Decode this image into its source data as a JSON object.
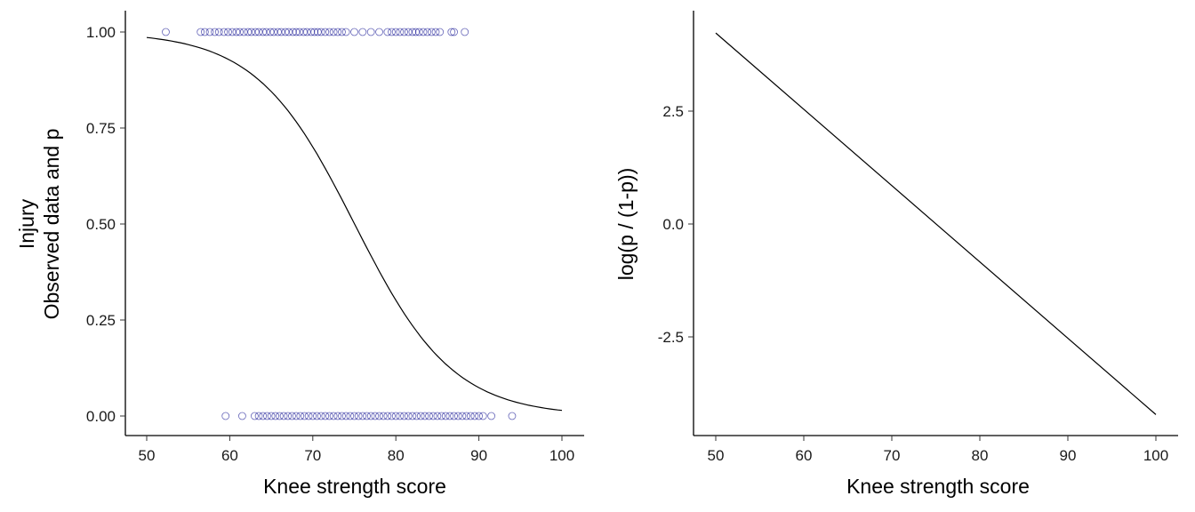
{
  "chart_data": [
    {
      "type": "scatter+line",
      "xlabel": "Knee strength score",
      "ylabel": [
        "Injury",
        "Observed data and p"
      ],
      "xlim": [
        47.5,
        102.5
      ],
      "ylim": [
        -0.05,
        1.05
      ],
      "xticks": [
        50,
        60,
        70,
        80,
        90,
        100
      ],
      "yticks": [
        "0.00",
        "0.25",
        "0.50",
        "0.75",
        "1.00"
      ],
      "point_color": "#00008b",
      "points_y1": [
        52.3,
        56.5,
        57,
        57.6,
        58.2,
        58.7,
        59.3,
        59.8,
        60.3,
        60.8,
        61.2,
        61.7,
        62.2,
        62.6,
        63.1,
        63.5,
        64,
        64.4,
        64.9,
        65.3,
        65.8,
        66.2,
        66.7,
        67.1,
        67.6,
        68,
        68.4,
        68.9,
        69.3,
        69.8,
        70.2,
        70.6,
        71,
        71.5,
        72,
        72.5,
        73,
        73.5,
        74,
        75,
        76,
        77,
        78,
        79,
        79.5,
        80,
        80.5,
        81,
        81.5,
        82,
        82.4,
        82.8,
        83.3,
        83.8,
        84.3,
        84.8,
        85.3,
        86.7,
        87,
        88.3
      ],
      "points_y0": [
        59.5,
        61.5,
        63,
        63.5,
        64,
        64.5,
        65,
        65.5,
        66,
        66.5,
        67,
        67.5,
        68,
        68.5,
        69,
        69.5,
        70,
        70.5,
        71,
        71.5,
        72,
        72.5,
        73,
        73.5,
        74,
        74.5,
        75,
        75.5,
        76,
        76.5,
        77,
        77.5,
        78,
        78.5,
        79,
        79.5,
        80,
        80.5,
        81,
        81.5,
        82,
        82.5,
        83,
        83.5,
        84,
        84.5,
        85,
        85.5,
        86,
        86.5,
        87,
        87.5,
        88,
        88.5,
        89,
        89.5,
        90,
        90.5,
        91.5,
        94
      ],
      "curve": {
        "logit_intercept_at_50": 4.23,
        "logit_slope": -0.169,
        "x_range": [
          50,
          100
        ]
      }
    },
    {
      "type": "line",
      "xlabel": "Knee strength score",
      "ylabel": "log(p / (1-p))",
      "xlim": [
        47.5,
        102.5
      ],
      "ylim": [
        -4.6,
        4.6
      ],
      "xticks": [
        50,
        60,
        70,
        80,
        90,
        100
      ],
      "yticks": [
        "-2.5",
        "0.0",
        "2.5"
      ],
      "x": [
        50,
        100
      ],
      "y": [
        4.23,
        -4.22
      ]
    }
  ]
}
